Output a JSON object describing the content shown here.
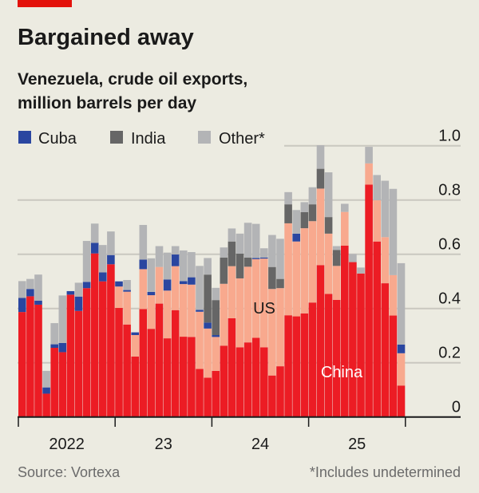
{
  "title": "Bargained away",
  "subtitle_lines": [
    "Venezuela, crude oil exports,",
    "million barrels per day"
  ],
  "source": "Source: Vortexa",
  "footnote": "*Includes undetermined",
  "colors": {
    "China": "#ec1c24",
    "US": "#f8a98e",
    "Cuba": "#2a46a0",
    "India": "#666666",
    "Other": "#b3b4b6",
    "brand": "#e3120b",
    "background": "#ecebe1"
  },
  "chart_data": {
    "type": "bar",
    "stacked": true,
    "frequency": "monthly",
    "period": [
      "2022-01",
      "2025-12"
    ],
    "ylim": [
      0,
      1.0
    ],
    "yticks": [
      "0",
      "0.2",
      "0.4",
      "0.6",
      "0.8",
      "1.0"
    ],
    "ytick_values": [
      0,
      0.2,
      0.4,
      0.6,
      0.8,
      1.0
    ],
    "xtick_labels": [
      "2022",
      "23",
      "24",
      "25"
    ],
    "grid": true,
    "yaxis_side": "right",
    "legend": {
      "placement": "top-left",
      "entries": [
        "Cuba",
        "India",
        "Other*"
      ]
    },
    "annotations": [
      "US",
      "China"
    ],
    "series": [
      {
        "name": "China",
        "values": [
          0.387,
          0.445,
          0.414,
          0.086,
          0.255,
          0.239,
          0.451,
          0.391,
          0.475,
          0.603,
          0.5,
          0.563,
          0.402,
          0.341,
          0.223,
          0.398,
          0.325,
          0.418,
          0.29,
          0.394,
          0.296,
          0.295,
          0.177,
          0.145,
          0.17,
          0.263,
          0.364,
          0.257,
          0.275,
          0.292,
          0.257,
          0.153,
          0.187,
          0.375,
          0.371,
          0.382,
          0.422,
          0.56,
          0.454,
          0.432,
          0.632,
          0.571,
          0.529,
          0.857,
          0.647,
          0.493,
          0.374,
          0.116
        ]
      },
      {
        "name": "US",
        "values": [
          0,
          0,
          0,
          0,
          0,
          0,
          0,
          0,
          0,
          0,
          0,
          0,
          0.079,
          0.121,
          0.079,
          0.147,
          0.124,
          0.135,
          0.176,
          0.162,
          0.194,
          0.193,
          0.211,
          0.181,
          0.125,
          0.228,
          0.192,
          0.254,
          0.279,
          0.29,
          0.327,
          0.319,
          0.288,
          0.339,
          0.276,
          0.314,
          0.3,
          0.282,
          0.222,
          0.125,
          0.124,
          0,
          0,
          0.078,
          0.152,
          0.17,
          0.149,
          0.119
        ]
      },
      {
        "name": "Cuba",
        "values": [
          0.052,
          0.027,
          0.015,
          0.023,
          0.013,
          0.034,
          0.013,
          0.053,
          0.023,
          0.039,
          0.033,
          0.034,
          0.019,
          0.006,
          0.01,
          0.035,
          0.012,
          0,
          0.041,
          0.043,
          0.011,
          0.027,
          0.007,
          0.022,
          0.007,
          0,
          0,
          0,
          0,
          0.004,
          0.004,
          0,
          0,
          0,
          0.029,
          0,
          0,
          0,
          0,
          0,
          0,
          0,
          0,
          0,
          0,
          0,
          0,
          0.032
        ]
      },
      {
        "name": "India",
        "values": [
          0,
          0,
          0,
          0,
          0,
          0,
          0,
          0,
          0,
          0,
          0,
          0,
          0,
          0,
          0,
          0,
          0,
          0,
          0,
          0,
          0,
          0,
          0,
          0.177,
          0.129,
          0.097,
          0.091,
          0.091,
          0.034,
          0,
          0,
          0.081,
          0.034,
          0.07,
          0,
          0.059,
          0.062,
          0.073,
          0.061,
          0.059,
          0,
          0,
          0,
          0,
          0,
          0,
          0,
          0
        ]
      },
      {
        "name": "Other*",
        "values": [
          0.062,
          0.037,
          0.096,
          0.061,
          0.078,
          0.175,
          0,
          0.051,
          0.151,
          0.071,
          0.101,
          0.087,
          0,
          0.037,
          0,
          0.128,
          0.124,
          0.077,
          0.099,
          0.031,
          0.113,
          0.093,
          0.162,
          0.061,
          0.045,
          0.037,
          0.048,
          0.074,
          0.128,
          0.126,
          0.034,
          0.118,
          0.148,
          0.045,
          0.087,
          0.037,
          0.063,
          0.087,
          0.165,
          0.014,
          0.03,
          0.03,
          0.022,
          0.061,
          0.093,
          0.208,
          0.318,
          0.3
        ]
      }
    ]
  }
}
